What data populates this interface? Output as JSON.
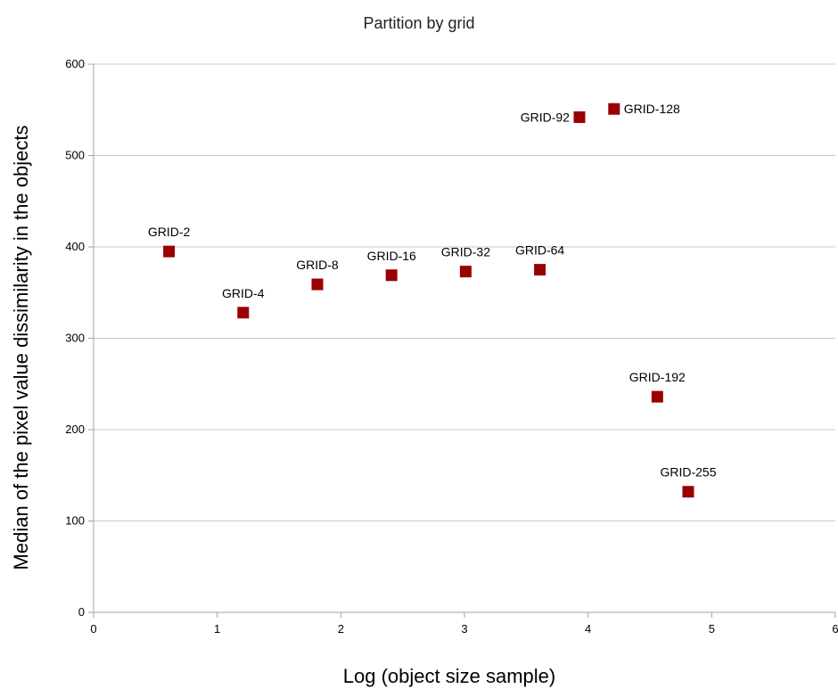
{
  "chart_data": {
    "type": "scatter",
    "title": "Partition by grid",
    "xlabel": "Log (object size sample)",
    "ylabel": "Median  of the pixel value dissimilarity in the objects",
    "xlim": [
      0,
      6
    ],
    "ylim": [
      0,
      600
    ],
    "x_ticks": [
      0,
      1,
      2,
      3,
      4,
      5,
      6
    ],
    "y_ticks": [
      0,
      100,
      200,
      300,
      400,
      500,
      600
    ],
    "grid": true,
    "marker": "square",
    "marker_color": "#990000",
    "points": [
      {
        "label": "GRID-2",
        "x": 0.61,
        "y": 395
      },
      {
        "label": "GRID-4",
        "x": 1.21,
        "y": 328
      },
      {
        "label": "GRID-8",
        "x": 1.81,
        "y": 359
      },
      {
        "label": "GRID-16",
        "x": 2.41,
        "y": 369
      },
      {
        "label": "GRID-32",
        "x": 3.01,
        "y": 373
      },
      {
        "label": "GRID-64",
        "x": 3.61,
        "y": 375
      },
      {
        "label": "GRID-92",
        "x": 3.93,
        "y": 542
      },
      {
        "label": "GRID-128",
        "x": 4.21,
        "y": 551
      },
      {
        "label": "GRID-192",
        "x": 4.56,
        "y": 236
      },
      {
        "label": "GRID-255",
        "x": 4.81,
        "y": 132
      }
    ]
  }
}
